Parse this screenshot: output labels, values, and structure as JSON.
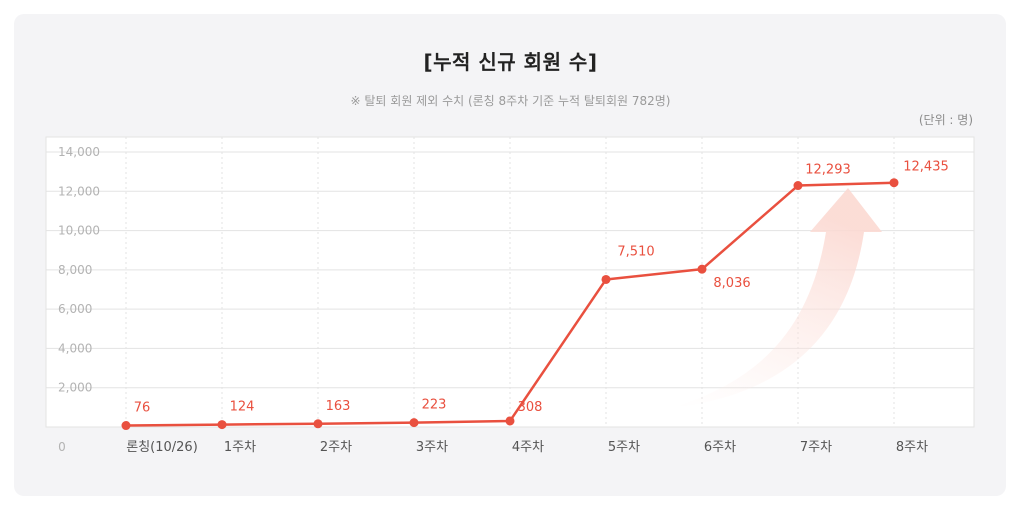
{
  "chart_data": {
    "type": "line",
    "title": "[누적 신규 회원 수]",
    "subtitle": "※ 탈퇴 회원 제외 수치 (론칭 8주차 기준 누적 탈퇴회원 782명)",
    "unit_label": "(단위 : 명)",
    "categories": [
      "론칭(10/26)",
      "1주차",
      "2주차",
      "3주차",
      "4주차",
      "5주차",
      "6주차",
      "7주차",
      "8주차"
    ],
    "values": [
      76,
      124,
      163,
      223,
      308,
      7510,
      8036,
      12293,
      12435
    ],
    "data_labels": [
      "76",
      "124",
      "163",
      "223",
      "308",
      "7,510",
      "8,036",
      "12,293",
      "12,435"
    ],
    "y_ticks": [
      0,
      2000,
      4000,
      6000,
      8000,
      10000,
      12000,
      14000
    ],
    "y_tick_labels": [
      "0",
      "2,000",
      "4,000",
      "6,000",
      "8,000",
      "10,000",
      "12,000",
      "14,000"
    ],
    "ylim": [
      0,
      14000
    ],
    "grid": true,
    "colors": {
      "line": "#e9503f",
      "label": "#e9503f",
      "grid": "#e3e3e3",
      "plot_bg": "#ffffff"
    }
  }
}
